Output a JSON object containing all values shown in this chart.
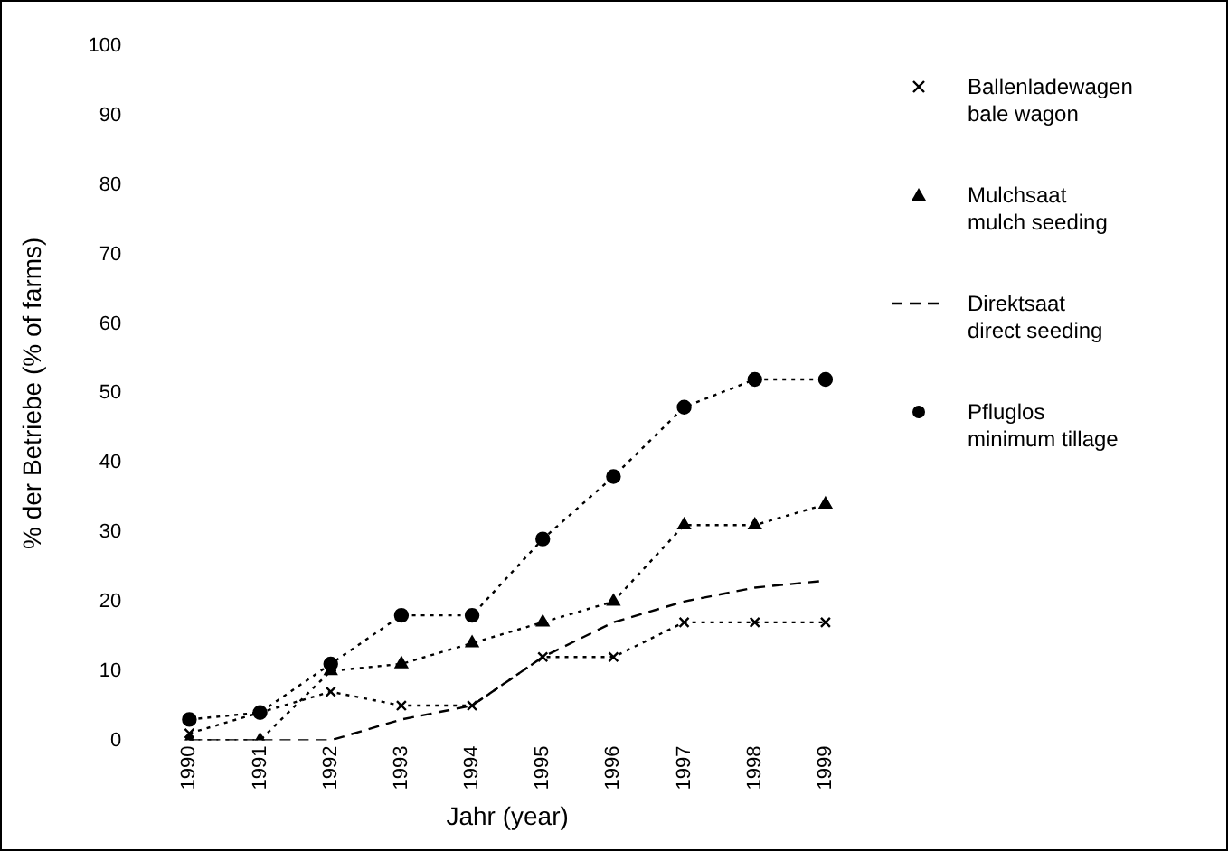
{
  "chart_data": {
    "type": "line",
    "xlabel": "Jahr (year)",
    "ylabel": "% der Betriebe (% of farms)",
    "categories": [
      "1990",
      "1991",
      "1992",
      "1993",
      "1994",
      "1995",
      "1996",
      "1997",
      "1998",
      "1999"
    ],
    "ylim": [
      0,
      100
    ],
    "yticks": [
      0,
      10,
      20,
      30,
      40,
      50,
      60,
      70,
      80,
      90,
      100
    ],
    "grid": false,
    "legend": "right",
    "series": [
      {
        "name": "Ballenladewagen\nbale wagon",
        "color": "#000000",
        "marker": "cross",
        "line_style": "dotted",
        "values": [
          1,
          4,
          7,
          5,
          5,
          12,
          12,
          17,
          17,
          17
        ]
      },
      {
        "name": "Mulchsaat\nmulch seeding",
        "color": "#000000",
        "marker": "triangle",
        "line_style": "dotted",
        "values": [
          0,
          0,
          10,
          11,
          14,
          17,
          20,
          31,
          31,
          34
        ]
      },
      {
        "name": "Direktsaat\ndirect seeding",
        "color": "#000000",
        "marker": "none",
        "line_style": "dashed",
        "values": [
          0,
          0,
          0,
          3,
          5,
          12,
          17,
          20,
          22,
          23
        ]
      },
      {
        "name": "Pfluglos\nminimum tillage",
        "color": "#000000",
        "marker": "circle",
        "line_style": "dotted",
        "values": [
          3,
          4,
          11,
          18,
          18,
          29,
          38,
          48,
          52,
          52
        ]
      }
    ]
  }
}
